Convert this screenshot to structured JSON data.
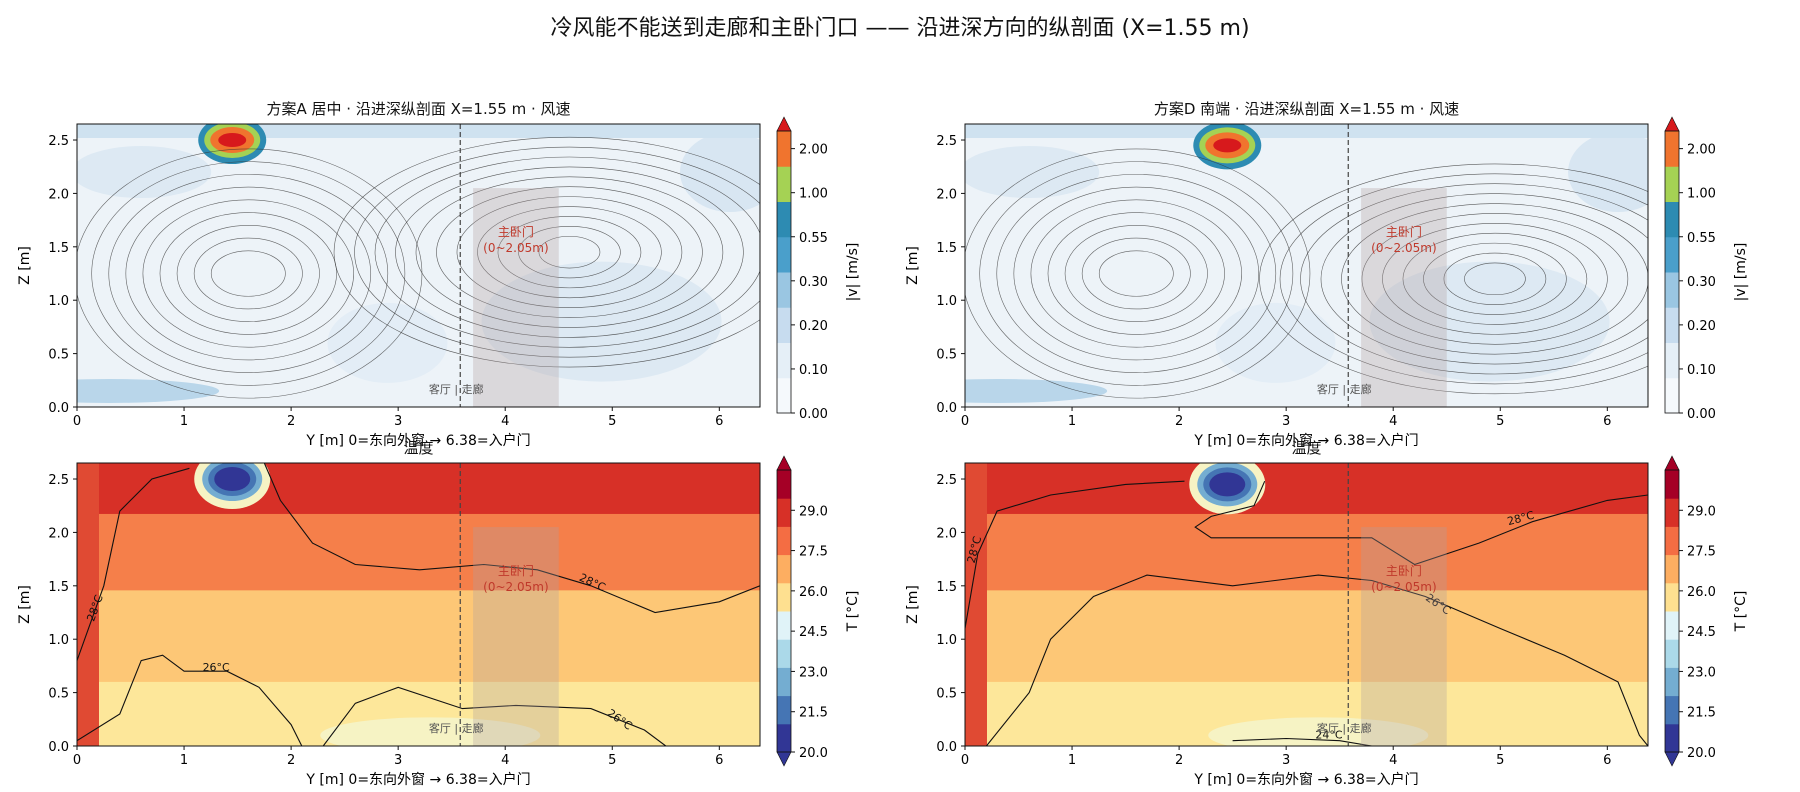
{
  "suptitle": "冷风能不能送到走廊和主卧门口 —— 沿进深方向的纵剖面 (X=1.55 m)",
  "chart_data": [
    {
      "id": "A-speed",
      "type": "heatmap",
      "title": "方案A 居中 · 沿进深纵剖面 X=1.55 m · 风速",
      "xlabel": "Y [m]  0=东向外窗 → 6.38=入户门",
      "ylabel": "Z [m]",
      "xlim": [
        0,
        6.38
      ],
      "ylim": [
        0,
        2.65
      ],
      "xticks": [
        "0",
        "1",
        "2",
        "3",
        "4",
        "5",
        "6"
      ],
      "yticks": [
        "0.0",
        "0.5",
        "1.0",
        "1.5",
        "2.0",
        "2.5"
      ],
      "colorbar": {
        "label": "|v| [m/s]",
        "ticks": [
          "0.00",
          "0.10",
          "0.20",
          "0.30",
          "0.55",
          "1.00",
          "2.00"
        ],
        "extend": "max"
      },
      "divider": {
        "y": 3.58,
        "label": "客厅 | 走廊"
      },
      "door": {
        "y0": 3.7,
        "y1": 4.5,
        "z0": 0,
        "z1": 2.05,
        "label": "主卧门\n(0~2.05m)"
      },
      "inlet": {
        "y": 1.45,
        "z": 2.5
      },
      "vortex": {
        "y": 4.6,
        "z": 1.45
      },
      "contours": [],
      "annotations": []
    },
    {
      "id": "D-speed",
      "type": "heatmap",
      "title": "方案D 南端 · 沿进深纵剖面 X=1.55 m · 风速",
      "xlabel": "Y [m]  0=东向外窗 → 6.38=入户门",
      "ylabel": "Z [m]",
      "xlim": [
        0,
        6.38
      ],
      "ylim": [
        0,
        2.65
      ],
      "xticks": [
        "0",
        "1",
        "2",
        "3",
        "4",
        "5",
        "6"
      ],
      "yticks": [
        "0.0",
        "0.5",
        "1.0",
        "1.5",
        "2.0",
        "2.5"
      ],
      "colorbar": {
        "label": "|v| [m/s]",
        "ticks": [
          "0.00",
          "0.10",
          "0.20",
          "0.30",
          "0.55",
          "1.00",
          "2.00"
        ],
        "extend": "max"
      },
      "divider": {
        "y": 3.58,
        "label": "客厅 | 走廊"
      },
      "door": {
        "y0": 3.7,
        "y1": 4.5,
        "z0": 0,
        "z1": 2.05,
        "label": "主卧门\n(0~2.05m)"
      },
      "inlet": {
        "y": 2.45,
        "z": 2.45
      },
      "vortex": {
        "y": 4.95,
        "z": 1.2
      },
      "contours": [],
      "annotations": []
    },
    {
      "id": "A-temp",
      "type": "heatmap",
      "title": "温度",
      "xlabel": "Y [m]  0=东向外窗 → 6.38=入户门",
      "ylabel": "Z [m]",
      "xlim": [
        0,
        6.38
      ],
      "ylim": [
        0,
        2.65
      ],
      "xticks": [
        "0",
        "1",
        "2",
        "3",
        "4",
        "5",
        "6"
      ],
      "yticks": [
        "0.0",
        "0.5",
        "1.0",
        "1.5",
        "2.0",
        "2.5"
      ],
      "colorbar": {
        "label": "T [°C]",
        "ticks": [
          "20.0",
          "21.5",
          "23.0",
          "24.5",
          "26.0",
          "27.5",
          "29.0"
        ],
        "extend": "both"
      },
      "divider": {
        "y": 3.58,
        "label": "客厅 | 走廊"
      },
      "door": {
        "y0": 3.7,
        "y1": 4.5,
        "z0": 0,
        "z1": 2.05,
        "label": "主卧门\n(0~2.05m)"
      },
      "inlet": {
        "y": 1.45,
        "z": 2.5
      },
      "contours": [
        {
          "label": "28°C",
          "points": [
            [
              0,
              0.8
            ],
            [
              0.25,
              1.5
            ],
            [
              0.4,
              2.2
            ],
            [
              0.7,
              2.5
            ],
            [
              1.05,
              2.6
            ]
          ]
        },
        {
          "label": "28°C",
          "points": [
            [
              1.75,
              2.65
            ],
            [
              1.9,
              2.3
            ],
            [
              2.2,
              1.9
            ],
            [
              2.6,
              1.7
            ],
            [
              3.2,
              1.65
            ],
            [
              3.8,
              1.7
            ],
            [
              4.3,
              1.65
            ],
            [
              4.8,
              1.5
            ],
            [
              5.4,
              1.25
            ],
            [
              6.0,
              1.35
            ],
            [
              6.38,
              1.5
            ]
          ]
        },
        {
          "label": "26°C",
          "points": [
            [
              0,
              0.05
            ],
            [
              0.4,
              0.3
            ],
            [
              0.6,
              0.8
            ],
            [
              0.8,
              0.85
            ],
            [
              1.0,
              0.7
            ],
            [
              1.4,
              0.7
            ],
            [
              1.7,
              0.55
            ],
            [
              2.0,
              0.2
            ],
            [
              2.1,
              0
            ]
          ]
        },
        {
          "label": "26°C",
          "points": [
            [
              2.3,
              0
            ],
            [
              2.6,
              0.4
            ],
            [
              3.0,
              0.55
            ],
            [
              3.6,
              0.35
            ],
            [
              4.1,
              0.38
            ],
            [
              4.8,
              0.35
            ],
            [
              5.3,
              0.15
            ],
            [
              5.5,
              0
            ]
          ]
        }
      ],
      "annotations": [
        {
          "text": "28°C",
          "y": 0.2,
          "z": 1.28,
          "angle": -70
        },
        {
          "text": "28°C",
          "y": 4.8,
          "z": 1.5,
          "angle": 25
        },
        {
          "text": "26°C",
          "y": 1.3,
          "z": 0.7,
          "angle": 0
        },
        {
          "text": "26°C",
          "y": 5.05,
          "z": 0.22,
          "angle": 35
        }
      ]
    },
    {
      "id": "D-temp",
      "type": "heatmap",
      "title": "温度",
      "xlabel": "Y [m]  0=东向外窗 → 6.38=入户门",
      "ylabel": "Z [m]",
      "xlim": [
        0,
        6.38
      ],
      "ylim": [
        0,
        2.65
      ],
      "xticks": [
        "0",
        "1",
        "2",
        "3",
        "4",
        "5",
        "6"
      ],
      "yticks": [
        "0.0",
        "0.5",
        "1.0",
        "1.5",
        "2.0",
        "2.5"
      ],
      "colorbar": {
        "label": "T [°C]",
        "ticks": [
          "20.0",
          "21.5",
          "23.0",
          "24.5",
          "26.0",
          "27.5",
          "29.0"
        ],
        "extend": "both"
      },
      "divider": {
        "y": 3.58,
        "label": "客厅 | 走廊"
      },
      "door": {
        "y0": 3.7,
        "y1": 4.5,
        "z0": 0,
        "z1": 2.05,
        "label": "主卧门\n(0~2.05m)"
      },
      "inlet": {
        "y": 2.45,
        "z": 2.45
      },
      "contours": [
        {
          "label": "28°C",
          "points": [
            [
              0,
              1.1
            ],
            [
              0.12,
              1.8
            ],
            [
              0.3,
              2.2
            ],
            [
              0.8,
              2.35
            ],
            [
              1.5,
              2.45
            ],
            [
              2.05,
              2.48
            ]
          ]
        },
        {
          "label": "28°C",
          "points": [
            [
              2.8,
              2.48
            ],
            [
              2.7,
              2.25
            ],
            [
              2.3,
              2.15
            ],
            [
              2.15,
              2.05
            ],
            [
              2.3,
              1.95
            ],
            [
              3.0,
              1.95
            ],
            [
              3.8,
              1.95
            ],
            [
              4.2,
              1.7
            ],
            [
              4.8,
              1.9
            ],
            [
              5.3,
              2.1
            ],
            [
              6.0,
              2.3
            ],
            [
              6.38,
              2.35
            ]
          ]
        },
        {
          "label": "26°C",
          "points": [
            [
              0.2,
              0
            ],
            [
              0.6,
              0.5
            ],
            [
              0.8,
              1.0
            ],
            [
              1.2,
              1.4
            ],
            [
              1.7,
              1.6
            ],
            [
              2.5,
              1.5
            ],
            [
              3.3,
              1.6
            ],
            [
              3.8,
              1.55
            ],
            [
              4.3,
              1.4
            ],
            [
              5.0,
              1.1
            ],
            [
              5.6,
              0.85
            ],
            [
              6.1,
              0.6
            ],
            [
              6.3,
              0.1
            ],
            [
              6.38,
              0
            ]
          ]
        },
        {
          "label": "24°C",
          "points": [
            [
              2.5,
              0.05
            ],
            [
              3.0,
              0.07
            ],
            [
              3.5,
              0.05
            ],
            [
              3.8,
              0
            ]
          ]
        }
      ],
      "annotations": [
        {
          "text": "28°C",
          "y": 0.12,
          "z": 1.83,
          "angle": -75
        },
        {
          "text": "28°C",
          "y": 5.2,
          "z": 2.1,
          "angle": -15
        },
        {
          "text": "26°C",
          "y": 4.4,
          "z": 1.3,
          "angle": 35
        },
        {
          "text": "24°C",
          "y": 3.4,
          "z": 0.07,
          "angle": 0
        }
      ]
    }
  ]
}
